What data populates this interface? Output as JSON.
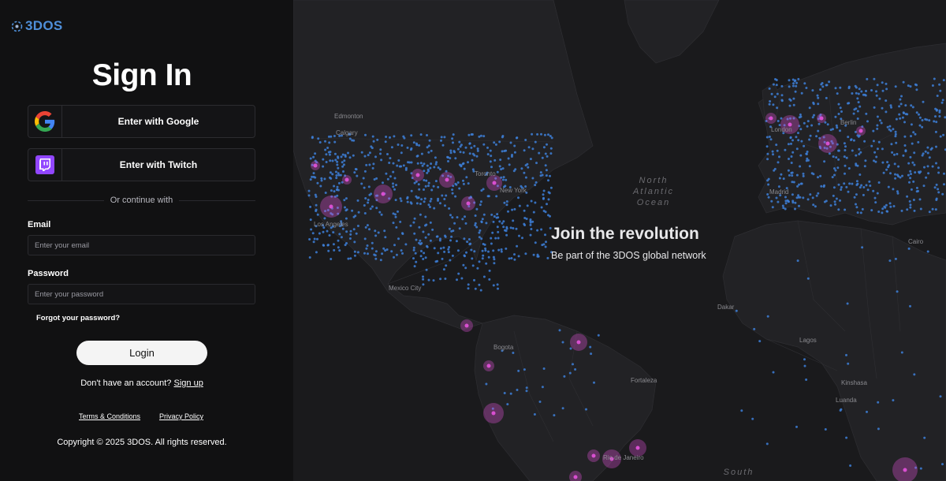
{
  "brand": {
    "name": "3DOS",
    "color": "#4f8fd9"
  },
  "signin": {
    "title": "Sign In",
    "google_label": "Enter with Google",
    "twitch_label": "Enter with Twitch",
    "divider_text": "Or continue with",
    "email_label": "Email",
    "email_placeholder": "Enter your email",
    "email_value": "",
    "password_label": "Password",
    "password_placeholder": "Enter your password",
    "password_value": "",
    "forgot_label": "Forgot your password?",
    "login_label": "Login",
    "no_account_text": "Don't have an account?",
    "signup_label": "Sign up"
  },
  "footer": {
    "terms_label": "Terms & Conditions",
    "privacy_label": "Privacy Policy",
    "copyright": "Copyright © 2025 3DOS. All rights reserved."
  },
  "hero": {
    "title": "Join the revolution",
    "subtitle": "Be part of the 3DOS global network"
  },
  "map": {
    "cities": [
      "Edmonton",
      "Calgary",
      "Los Angeles",
      "Mexico City",
      "Bogota",
      "Fortaleza",
      "Rio de Janeiro",
      "Madrid",
      "Berlin",
      "Cairo",
      "Dakar",
      "Lagos",
      "Kinshasa",
      "Luanda",
      "Toronto",
      "New York",
      "London"
    ],
    "oceans": [
      "North Atlantic Ocean",
      "South"
    ],
    "colors": {
      "node": "#3d7fd8",
      "hub": "#d94fd1",
      "land": "#232326",
      "water": "#18181a"
    }
  }
}
